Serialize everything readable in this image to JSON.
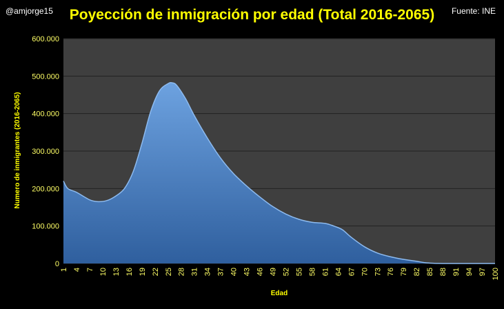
{
  "header": {
    "handle": "@amjorge15",
    "title": "Poyección de inmigración por edad (Total 2016-2065)",
    "source": "Fuente: INE"
  },
  "colors": {
    "background": "#000000",
    "plot_background": "#3f3f3f",
    "gridline": "#222222",
    "area_fill": "#4a86cc",
    "area_top": "#6da2e0",
    "label_text": "#ffff00"
  },
  "chart_data": {
    "type": "area",
    "title": "Poyección de inmigración por edad (Total 2016-2065)",
    "xlabel": "Edad",
    "ylabel": "Numero de inmigrantes (2016-2065)",
    "ylim": [
      0,
      600000
    ],
    "yticks": [
      "0",
      "100.000",
      "200.000",
      "300.000",
      "400.000",
      "500.000",
      "600.000"
    ],
    "xlim": [
      1,
      100
    ],
    "xticks": [
      1,
      4,
      7,
      10,
      13,
      16,
      19,
      22,
      25,
      28,
      31,
      34,
      37,
      40,
      43,
      46,
      49,
      52,
      55,
      58,
      61,
      64,
      67,
      70,
      73,
      76,
      79,
      82,
      85,
      88,
      91,
      94,
      97,
      100
    ],
    "grid": true,
    "legend": "none",
    "x": [
      1,
      2,
      4,
      7,
      9,
      11,
      13,
      15,
      17,
      19,
      21,
      23,
      25,
      26,
      27,
      29,
      31,
      34,
      37,
      40,
      43,
      46,
      49,
      52,
      55,
      58,
      61,
      63,
      65,
      67,
      70,
      73,
      76,
      79,
      82,
      84,
      86,
      88,
      91,
      94,
      97,
      100
    ],
    "values": [
      220000,
      200000,
      190000,
      170000,
      165000,
      168000,
      180000,
      200000,
      245000,
      320000,
      405000,
      460000,
      480000,
      482000,
      475000,
      440000,
      395000,
      335000,
      282000,
      240000,
      207000,
      178000,
      152000,
      132000,
      118000,
      110000,
      107000,
      100000,
      90000,
      70000,
      45000,
      28000,
      18000,
      11000,
      6000,
      2000,
      500,
      0,
      0,
      0,
      0,
      0
    ]
  }
}
